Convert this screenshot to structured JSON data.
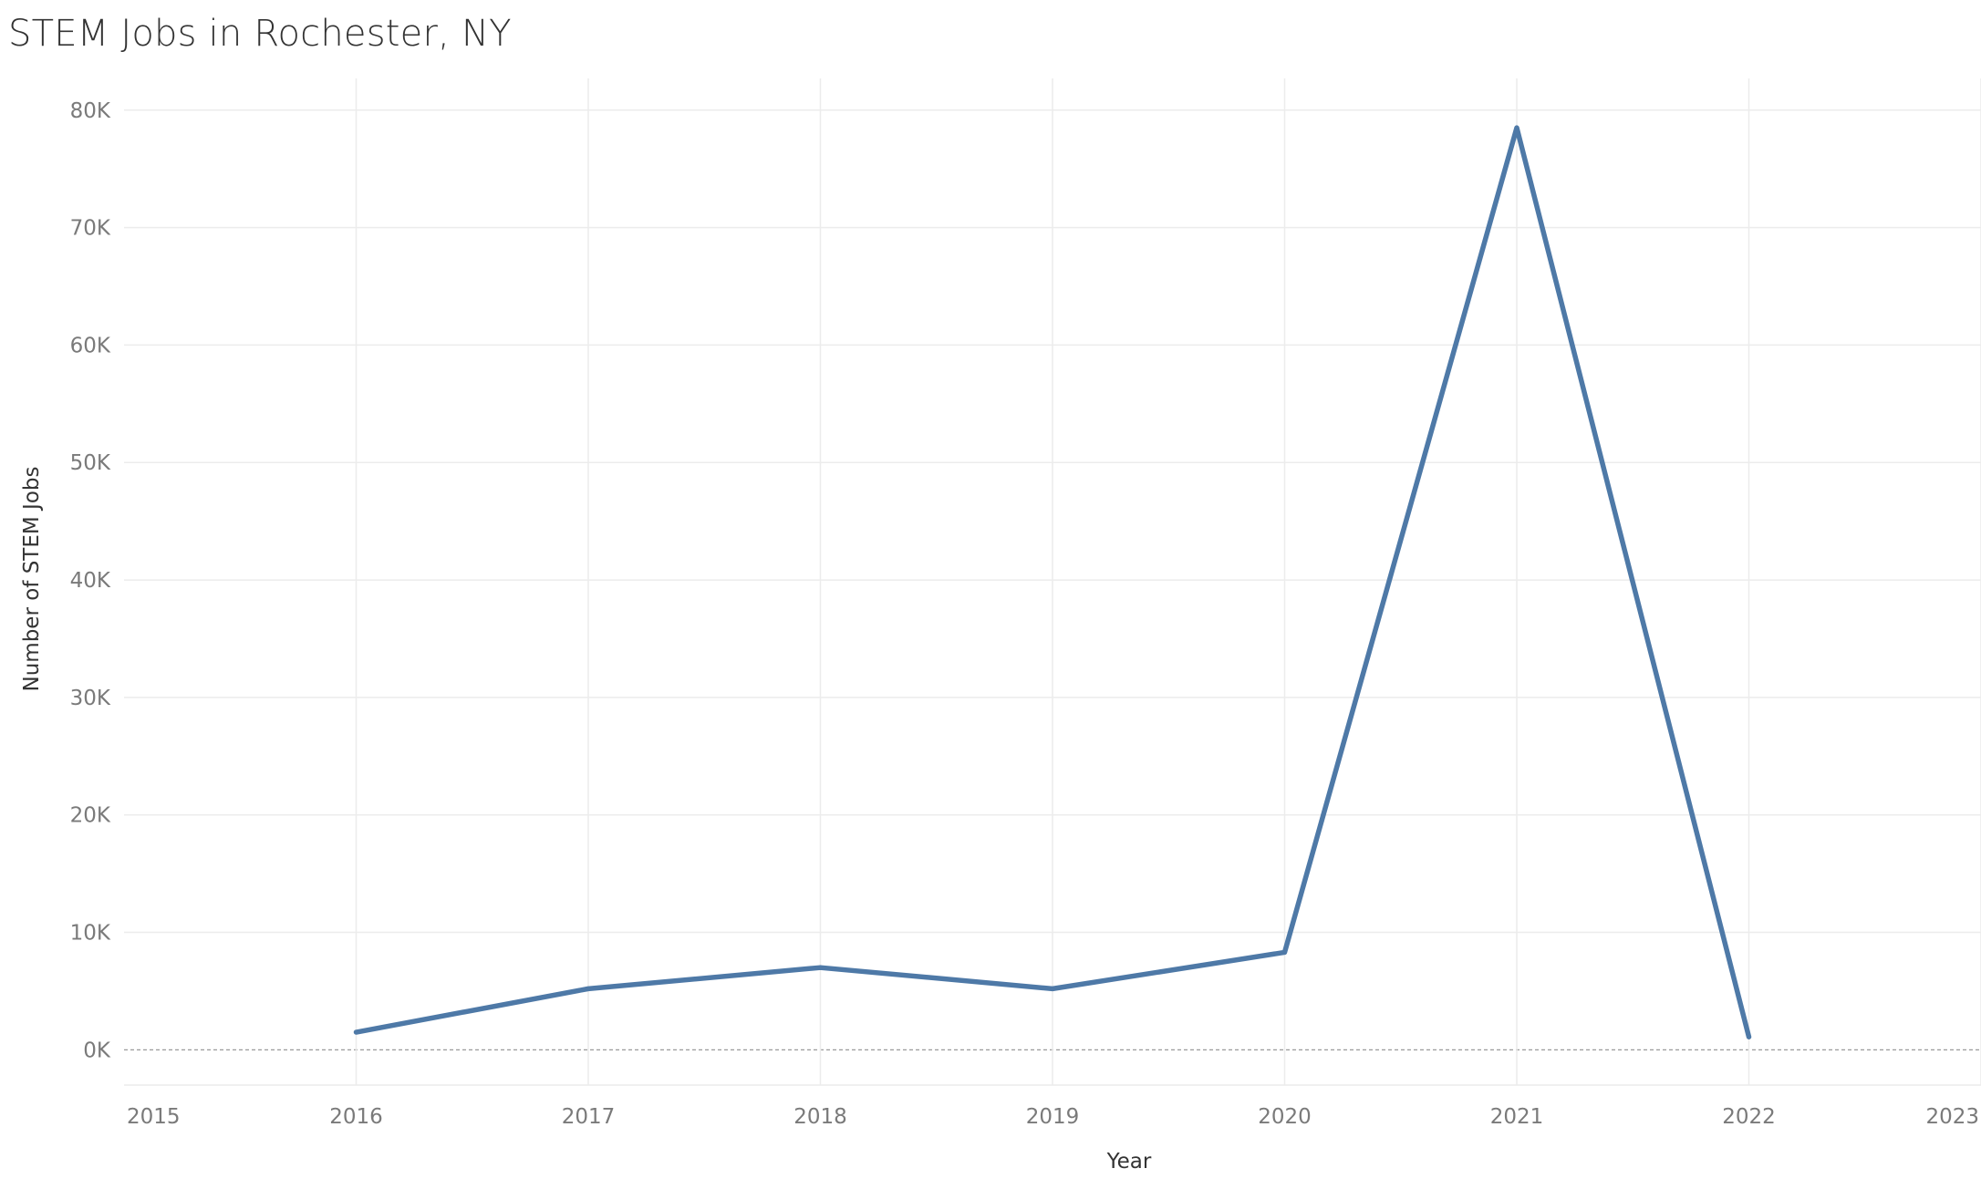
{
  "chart_data": {
    "type": "line",
    "title": "STEM Jobs in Rochester, NY",
    "xlabel": "Year",
    "ylabel": "Number of STEM Jobs",
    "x": [
      2016,
      2017,
      2018,
      2019,
      2020,
      2021,
      2022
    ],
    "series": [
      {
        "values": [
          1500,
          5200,
          7000,
          5200,
          8300,
          78500,
          1100
        ],
        "color": "#4e79a7"
      }
    ],
    "xlim": [
      2015,
      2023
    ],
    "ylim": [
      -3000,
      82700
    ],
    "x_ticks": [
      "2015",
      "2016",
      "2017",
      "2018",
      "2019",
      "2020",
      "2021",
      "2022",
      "2023"
    ],
    "y_ticks": [
      {
        "value": 0,
        "label": "0K"
      },
      {
        "value": 10000,
        "label": "10K"
      },
      {
        "value": 20000,
        "label": "20K"
      },
      {
        "value": 30000,
        "label": "30K"
      },
      {
        "value": 40000,
        "label": "40K"
      },
      {
        "value": 50000,
        "label": "50K"
      },
      {
        "value": 60000,
        "label": "60K"
      },
      {
        "value": 70000,
        "label": "70K"
      },
      {
        "value": 80000,
        "label": "80K"
      }
    ],
    "grid": true,
    "zero_line": "dashed",
    "colors": {
      "line": "#4e79a7",
      "grid": "#ececec",
      "zero_line": "#9a9a9a"
    }
  }
}
